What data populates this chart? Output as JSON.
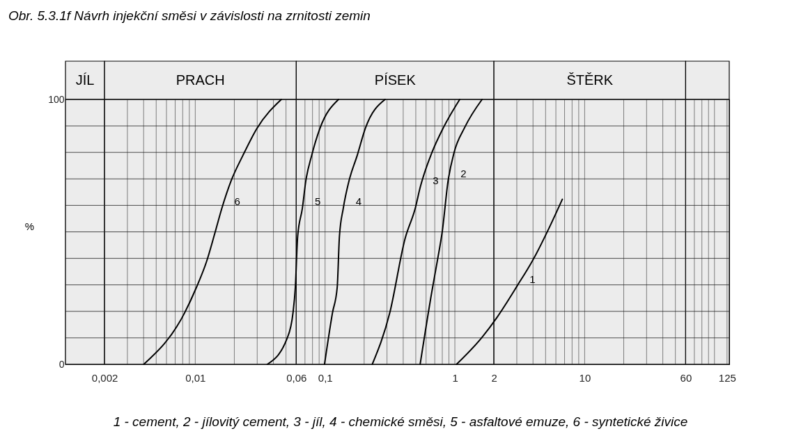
{
  "chart_data": {
    "type": "line",
    "title": "Obr. 5.3.1f  Návrh injekční směsi v závislosti na zrnitosti zemin",
    "ylabel": "%",
    "annotations": [
      "1 - cement, 2 - jílovitý cement, 3 - jíl, 4 - chemické směsi, 5 - asfaltové emuze, 6 - syntetické živice"
    ],
    "log": "x",
    "xlim": [
      0.001,
      130
    ],
    "ylim": [
      0,
      100
    ],
    "xticks": [
      {
        "value": 0.002,
        "label": "0,002"
      },
      {
        "value": 0.003,
        "label": null
      },
      {
        "value": 0.004,
        "label": null
      },
      {
        "value": 0.005,
        "label": null
      },
      {
        "value": 0.006,
        "label": null
      },
      {
        "value": 0.007,
        "label": null
      },
      {
        "value": 0.008,
        "label": null
      },
      {
        "value": 0.009,
        "label": null
      },
      {
        "value": 0.01,
        "label": "0,01"
      },
      {
        "value": 0.02,
        "label": null
      },
      {
        "value": 0.03,
        "label": null
      },
      {
        "value": 0.04,
        "label": null
      },
      {
        "value": 0.05,
        "label": null
      },
      {
        "value": 0.06,
        "label": "0,06"
      },
      {
        "value": 0.07,
        "label": null
      },
      {
        "value": 0.08,
        "label": null
      },
      {
        "value": 0.09,
        "label": null
      },
      {
        "value": 0.1,
        "label": "0,1"
      },
      {
        "value": 0.2,
        "label": null
      },
      {
        "value": 0.3,
        "label": null
      },
      {
        "value": 0.4,
        "label": null
      },
      {
        "value": 0.5,
        "label": null
      },
      {
        "value": 0.6,
        "label": null
      },
      {
        "value": 0.7,
        "label": null
      },
      {
        "value": 0.8,
        "label": null
      },
      {
        "value": 0.9,
        "label": null
      },
      1,
      2,
      {
        "value": 3,
        "label": null
      },
      {
        "value": 4,
        "label": null
      },
      {
        "value": 5,
        "label": null
      },
      {
        "value": 6,
        "label": null
      },
      {
        "value": 7,
        "label": null
      },
      {
        "value": 8,
        "label": null
      },
      {
        "value": 9,
        "label": null
      },
      10,
      {
        "value": 20,
        "label": null
      },
      {
        "value": 30,
        "label": null
      },
      {
        "value": 40,
        "label": null
      },
      {
        "value": 50,
        "label": null
      },
      60,
      {
        "value": 70,
        "label": null
      },
      {
        "value": 80,
        "label": null
      },
      {
        "value": 90,
        "label": null
      },
      {
        "value": 100,
        "label": null
      },
      125
    ],
    "yticks": [
      0,
      {
        "value": 10,
        "label": null
      },
      {
        "value": 20,
        "label": null
      },
      {
        "value": 30,
        "label": null
      },
      {
        "value": 40,
        "label": null
      },
      {
        "value": 50,
        "label": null
      },
      {
        "value": 60,
        "label": null
      },
      {
        "value": 70,
        "label": null
      },
      {
        "value": 80,
        "label": null
      },
      {
        "value": 90,
        "label": null
      },
      100
    ],
    "grid": true,
    "bands": [
      {
        "axis": "x",
        "from": 0.001,
        "to": 0.002,
        "label": "JÍL",
        "color": "#ececec"
      },
      {
        "axis": "x",
        "from": 0.002,
        "to": 0.06,
        "label": "PRACH",
        "color": "#ececec"
      },
      {
        "axis": "x",
        "from": 0.06,
        "to": 2,
        "label": "PÍSEK",
        "color": "#ececec"
      },
      {
        "axis": "x",
        "from": 2,
        "to": 60,
        "label": "ŠTĚRK",
        "color": "#ececec"
      },
      {
        "axis": "x",
        "from": 60,
        "to": 130,
        "label": null,
        "color": "#ececec"
      }
    ],
    "series": [
      {
        "name": "1",
        "color": "#000000",
        "x": [
          1.03,
          1.62,
          2.11,
          3.01,
          4.1,
          5.36,
          6.73
        ],
        "values": [
          0,
          10.2,
          17.7,
          29.5,
          40.4,
          51.8,
          62.3
        ]
      },
      {
        "name": "2",
        "color": "#000000",
        "x": [
          0.54,
          0.664,
          0.736,
          0.799,
          0.887,
          0.984,
          1.19,
          1.62
        ],
        "values": [
          0,
          27.3,
          39.6,
          50,
          69.3,
          79.8,
          89.4,
          100
        ]
      },
      {
        "name": "3",
        "color": "#000000",
        "x": [
          0.231,
          0.315,
          0.413,
          0.497,
          0.54,
          0.664,
          0.817,
          1.09
        ],
        "values": [
          0,
          19.4,
          47.4,
          59.2,
          66.7,
          79.8,
          89.4,
          100
        ]
      },
      {
        "name": "4",
        "color": "#000000",
        "x": [
          0.099,
          0.114,
          0.124,
          0.129,
          0.138,
          0.153,
          0.177,
          0.204,
          0.29
        ],
        "values": [
          0,
          19.4,
          29,
          48.3,
          58.8,
          69.3,
          78.9,
          89,
          100
        ]
      },
      {
        "name": "5",
        "color": "#000000",
        "x": [
          0.0359,
          0.051,
          0.0566,
          0.059,
          0.0615,
          0.0668,
          0.0711,
          0.0789,
          0.0912,
          0.127
        ],
        "values": [
          0,
          9.8,
          19.4,
          29,
          48.3,
          58.8,
          69.3,
          78.9,
          89,
          100
        ]
      },
      {
        "name": "6",
        "color": "#000000",
        "x": [
          0.00401,
          0.00827,
          0.0102,
          0.0122,
          0.0141,
          0.016,
          0.0189,
          0.0233,
          0.0298,
          0.046
        ],
        "values": [
          0,
          19.4,
          29,
          38.7,
          49.2,
          58.8,
          69.3,
          78.9,
          89,
          100
        ]
      }
    ]
  }
}
